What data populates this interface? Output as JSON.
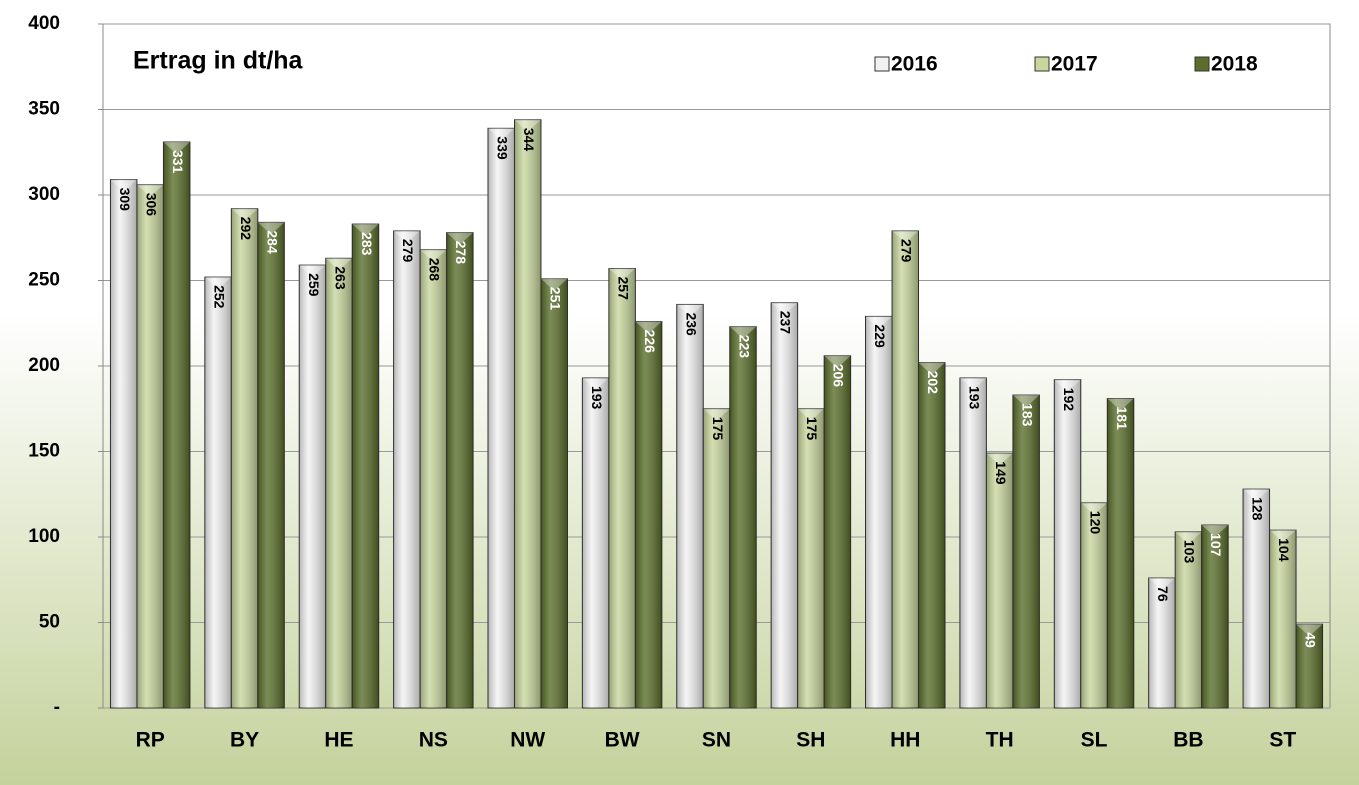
{
  "chart_data": {
    "type": "bar",
    "title": "Ertrag in dt/ha",
    "categories": [
      "RP",
      "BY",
      "HE",
      "NS",
      "NW",
      "BW",
      "SN",
      "SH",
      "HH",
      "TH",
      "SL",
      "BB",
      "ST"
    ],
    "series": [
      {
        "name": "2016",
        "color": "#f2f2f2",
        "values": [
          309,
          252,
          259,
          279,
          339,
          193,
          236,
          237,
          229,
          193,
          192,
          76,
          128
        ]
      },
      {
        "name": "2017",
        "color": "#c8d79e",
        "values": [
          306,
          292,
          263,
          268,
          344,
          257,
          175,
          175,
          279,
          149,
          120,
          103,
          104
        ]
      },
      {
        "name": "2018",
        "color": "#5b6f2b",
        "values": [
          331,
          284,
          283,
          278,
          251,
          226,
          223,
          206,
          202,
          183,
          181,
          107,
          49
        ]
      }
    ],
    "ylim": [
      0,
      400
    ],
    "yticks": [
      {
        "value": 0,
        "label": "-"
      },
      50,
      100,
      150,
      200,
      250,
      300,
      350,
      400
    ],
    "grid": true
  }
}
